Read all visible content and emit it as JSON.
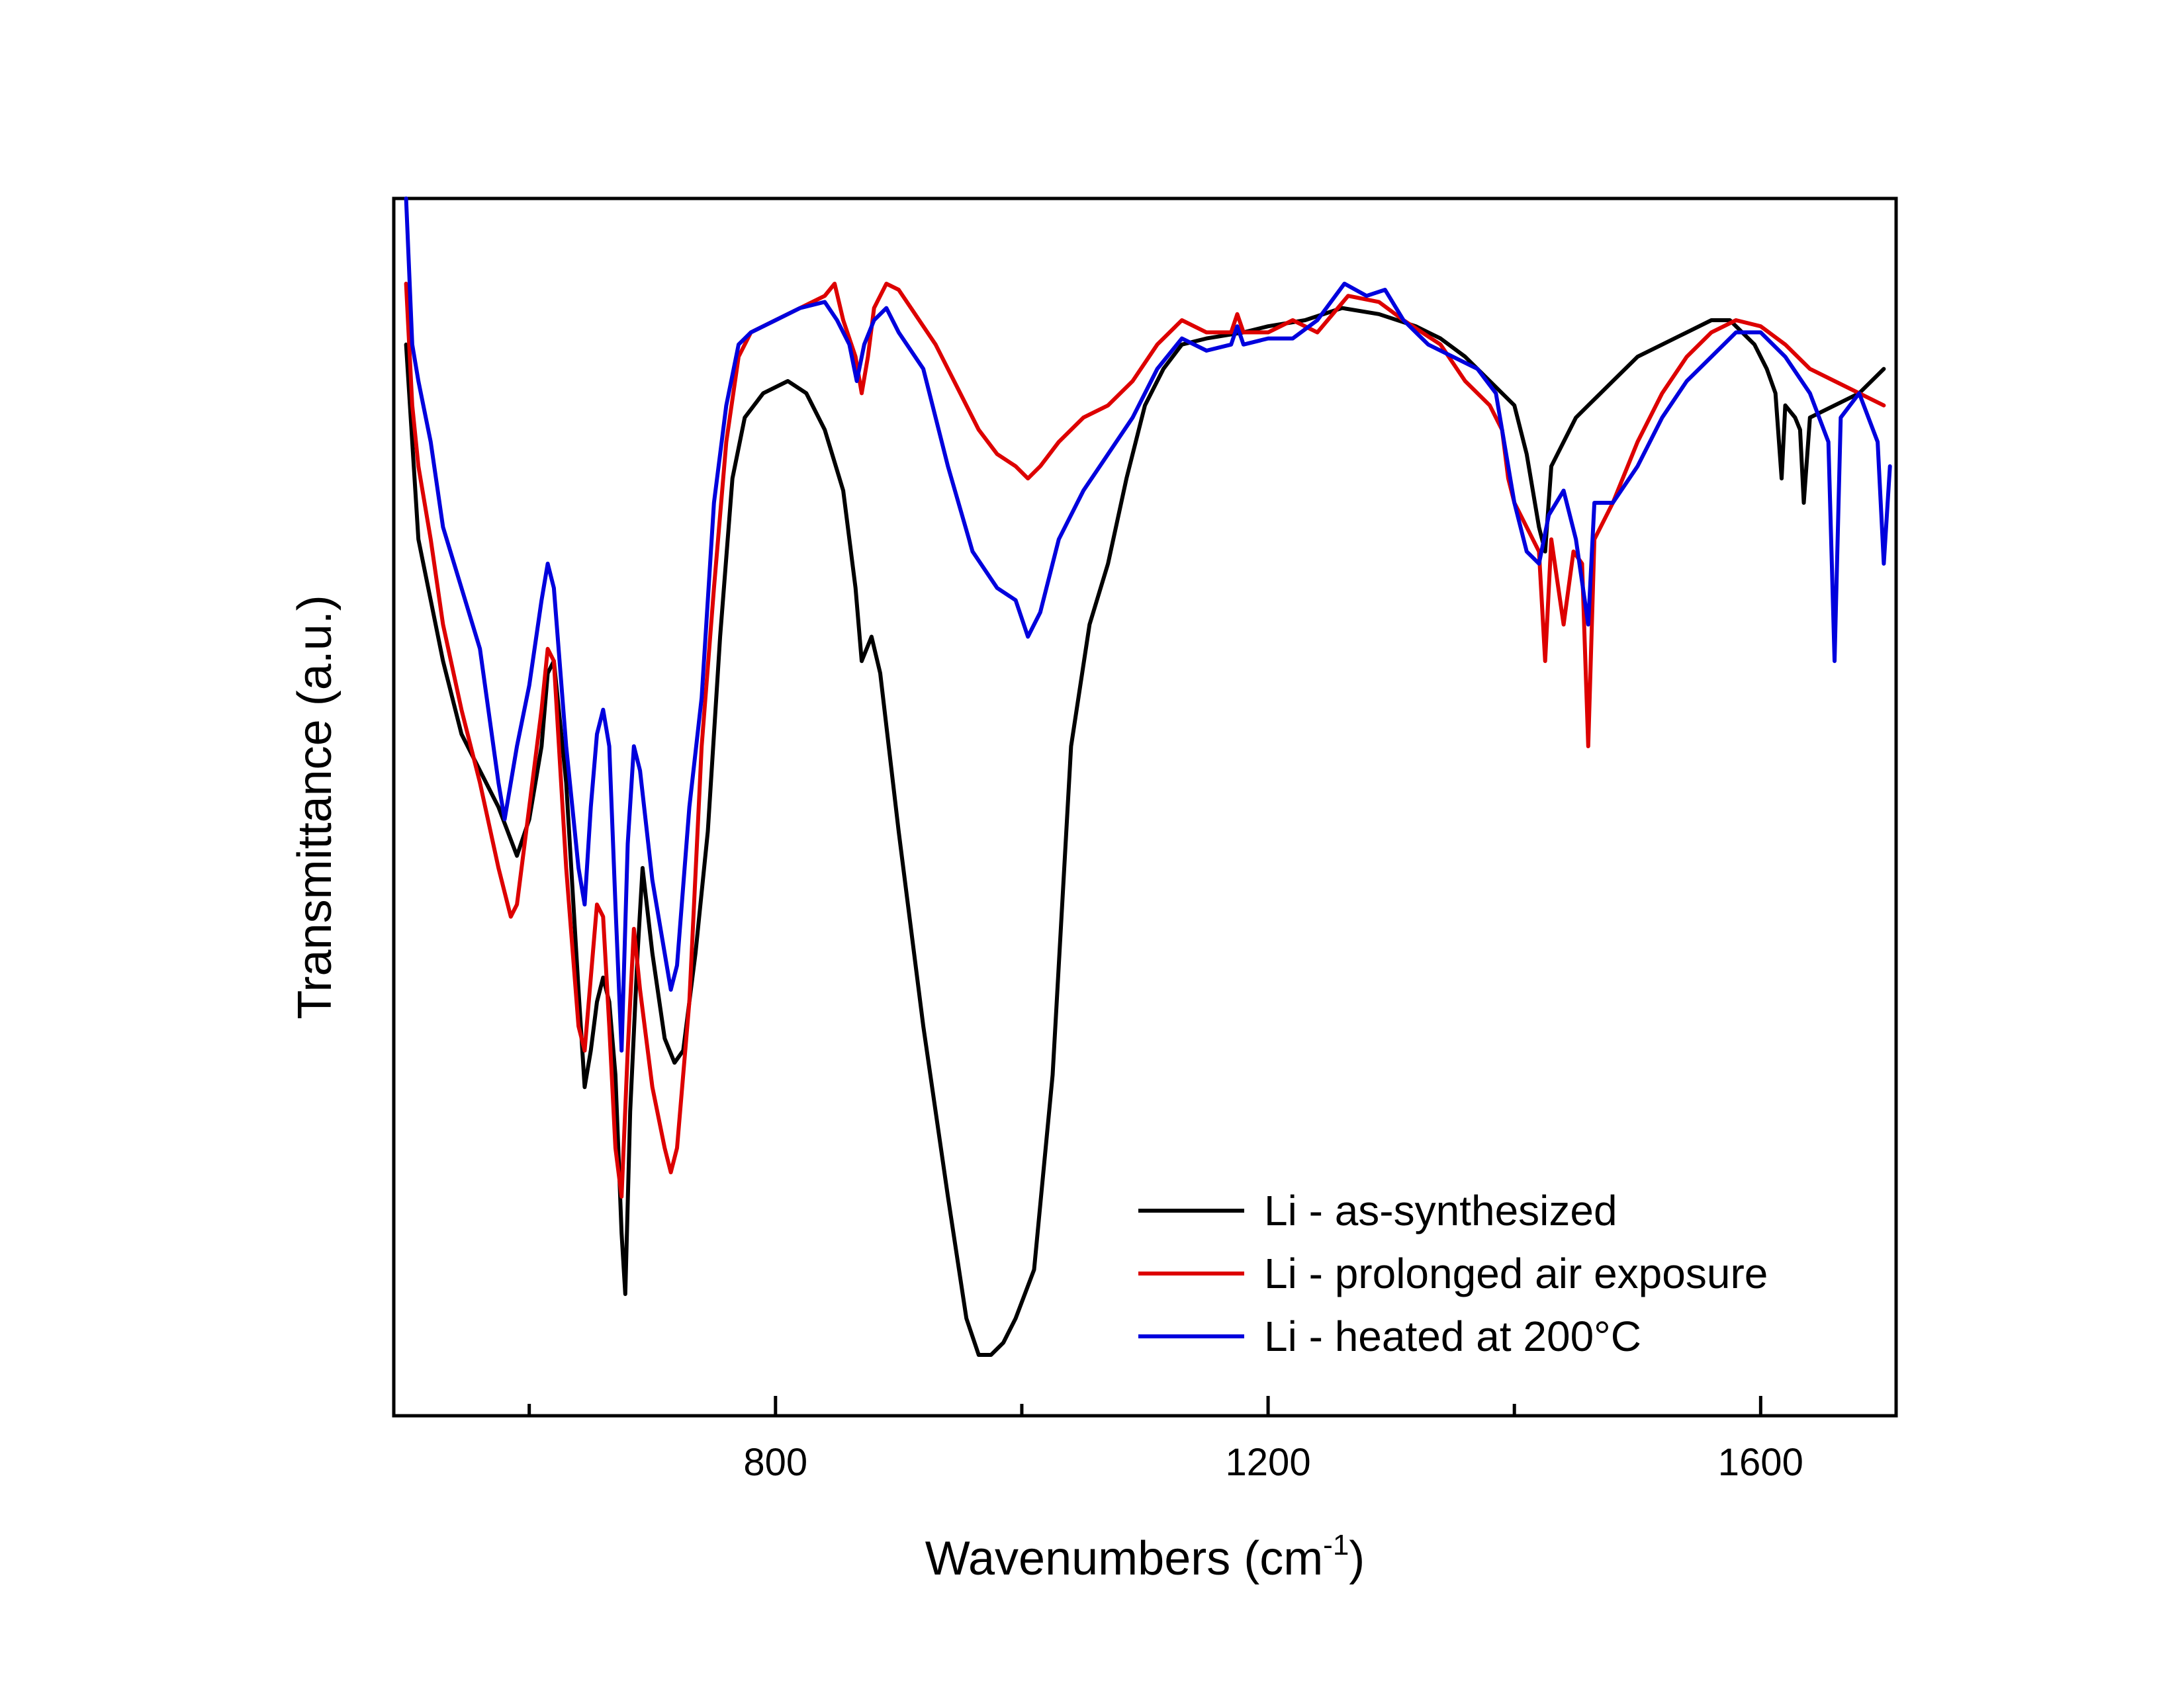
{
  "chart_data": {
    "type": "line",
    "title": "",
    "xlabel": "Wavenumbers (cm",
    "xlabel_superscript": "-1",
    "xlabel_suffix": ")",
    "ylabel": "Transmittance (a.u.)",
    "xlim": [
      490,
      1710
    ],
    "ylim": [
      0,
      100
    ],
    "x_ticks_major": [
      800,
      1200,
      1600
    ],
    "x_tick_labels": [
      "800",
      "1200",
      "1600"
    ],
    "x_ticks_minor": [
      600,
      1000,
      1400
    ],
    "y_ticks": [],
    "grid": false,
    "legend": {
      "position": "bottom-right"
    },
    "series": [
      {
        "name": "Li - as-synthesized",
        "color": "#000000",
        "points": [
          [
            500,
            88
          ],
          [
            505,
            80
          ],
          [
            510,
            72
          ],
          [
            520,
            67
          ],
          [
            530,
            62
          ],
          [
            545,
            56
          ],
          [
            560,
            53
          ],
          [
            575,
            50
          ],
          [
            590,
            46
          ],
          [
            600,
            49
          ],
          [
            610,
            55
          ],
          [
            615,
            61
          ],
          [
            620,
            62
          ],
          [
            630,
            52
          ],
          [
            640,
            35
          ],
          [
            645,
            27
          ],
          [
            650,
            30
          ],
          [
            655,
            34
          ],
          [
            660,
            36
          ],
          [
            665,
            34
          ],
          [
            670,
            28
          ],
          [
            675,
            15
          ],
          [
            678,
            10
          ],
          [
            682,
            25
          ],
          [
            688,
            38
          ],
          [
            692,
            45
          ],
          [
            700,
            38
          ],
          [
            710,
            31
          ],
          [
            718,
            29
          ],
          [
            725,
            30
          ],
          [
            735,
            38
          ],
          [
            745,
            48
          ],
          [
            755,
            64
          ],
          [
            765,
            77
          ],
          [
            775,
            82
          ],
          [
            790,
            84
          ],
          [
            810,
            85
          ],
          [
            825,
            84
          ],
          [
            840,
            81
          ],
          [
            855,
            76
          ],
          [
            865,
            68
          ],
          [
            870,
            62
          ],
          [
            878,
            64
          ],
          [
            885,
            61
          ],
          [
            900,
            48
          ],
          [
            920,
            32
          ],
          [
            940,
            18
          ],
          [
            955,
            8
          ],
          [
            965,
            5
          ],
          [
            975,
            5
          ],
          [
            985,
            6
          ],
          [
            995,
            8
          ],
          [
            1010,
            12
          ],
          [
            1025,
            28
          ],
          [
            1040,
            55
          ],
          [
            1055,
            65
          ],
          [
            1070,
            70
          ],
          [
            1085,
            77
          ],
          [
            1100,
            83
          ],
          [
            1115,
            86
          ],
          [
            1130,
            88
          ],
          [
            1150,
            88.5
          ],
          [
            1180,
            89
          ],
          [
            1200,
            89.5
          ],
          [
            1230,
            90
          ],
          [
            1260,
            91
          ],
          [
            1290,
            90.5
          ],
          [
            1320,
            89.5
          ],
          [
            1340,
            88.5
          ],
          [
            1360,
            87
          ],
          [
            1380,
            85
          ],
          [
            1400,
            83
          ],
          [
            1410,
            79
          ],
          [
            1420,
            73
          ],
          [
            1425,
            71
          ],
          [
            1430,
            78
          ],
          [
            1440,
            80
          ],
          [
            1450,
            82
          ],
          [
            1460,
            83
          ],
          [
            1480,
            85
          ],
          [
            1500,
            87
          ],
          [
            1520,
            88
          ],
          [
            1540,
            89
          ],
          [
            1560,
            90
          ],
          [
            1575,
            90
          ],
          [
            1585,
            89
          ],
          [
            1595,
            88
          ],
          [
            1605,
            86
          ],
          [
            1612,
            84
          ],
          [
            1617,
            77
          ],
          [
            1620,
            83
          ],
          [
            1628,
            82
          ],
          [
            1632,
            81
          ],
          [
            1635,
            75
          ],
          [
            1640,
            82
          ],
          [
            1660,
            83
          ],
          [
            1680,
            84
          ],
          [
            1700,
            86
          ]
        ]
      },
      {
        "name": "Li - prolonged air exposure",
        "color": "#dd0000",
        "points": [
          [
            500,
            93
          ],
          [
            505,
            83
          ],
          [
            510,
            78
          ],
          [
            520,
            72
          ],
          [
            530,
            65
          ],
          [
            545,
            58
          ],
          [
            560,
            52
          ],
          [
            575,
            45
          ],
          [
            585,
            41
          ],
          [
            590,
            42
          ],
          [
            600,
            50
          ],
          [
            610,
            58
          ],
          [
            615,
            63
          ],
          [
            620,
            62
          ],
          [
            630,
            45
          ],
          [
            640,
            32
          ],
          [
            645,
            30
          ],
          [
            650,
            36
          ],
          [
            655,
            42
          ],
          [
            660,
            41
          ],
          [
            665,
            32
          ],
          [
            670,
            22
          ],
          [
            675,
            18
          ],
          [
            680,
            30
          ],
          [
            685,
            40
          ],
          [
            690,
            35
          ],
          [
            700,
            27
          ],
          [
            710,
            22
          ],
          [
            715,
            20
          ],
          [
            720,
            22
          ],
          [
            730,
            34
          ],
          [
            740,
            55
          ],
          [
            750,
            68
          ],
          [
            760,
            80
          ],
          [
            770,
            87
          ],
          [
            780,
            89
          ],
          [
            800,
            90
          ],
          [
            820,
            91
          ],
          [
            840,
            92
          ],
          [
            848,
            93
          ],
          [
            855,
            90
          ],
          [
            865,
            87
          ],
          [
            870,
            84
          ],
          [
            875,
            87
          ],
          [
            880,
            91
          ],
          [
            890,
            93
          ],
          [
            900,
            92.5
          ],
          [
            910,
            91
          ],
          [
            930,
            88
          ],
          [
            950,
            84
          ],
          [
            965,
            81
          ],
          [
            980,
            79
          ],
          [
            995,
            78
          ],
          [
            1005,
            77
          ],
          [
            1015,
            78
          ],
          [
            1030,
            80
          ],
          [
            1050,
            82
          ],
          [
            1070,
            83
          ],
          [
            1090,
            85
          ],
          [
            1110,
            88
          ],
          [
            1130,
            90
          ],
          [
            1150,
            89
          ],
          [
            1170,
            89
          ],
          [
            1175,
            90.5
          ],
          [
            1180,
            89
          ],
          [
            1200,
            89
          ],
          [
            1220,
            90
          ],
          [
            1240,
            89
          ],
          [
            1265,
            92
          ],
          [
            1290,
            91.5
          ],
          [
            1310,
            90
          ],
          [
            1340,
            88
          ],
          [
            1360,
            85
          ],
          [
            1380,
            83
          ],
          [
            1390,
            81
          ],
          [
            1395,
            77
          ],
          [
            1400,
            75
          ],
          [
            1410,
            73
          ],
          [
            1420,
            71
          ],
          [
            1425,
            62
          ],
          [
            1430,
            72
          ],
          [
            1440,
            65
          ],
          [
            1448,
            71
          ],
          [
            1455,
            70
          ],
          [
            1460,
            55
          ],
          [
            1465,
            72
          ],
          [
            1480,
            75
          ],
          [
            1500,
            80
          ],
          [
            1520,
            84
          ],
          [
            1540,
            87
          ],
          [
            1560,
            89
          ],
          [
            1580,
            90
          ],
          [
            1600,
            89.5
          ],
          [
            1620,
            88
          ],
          [
            1640,
            86
          ],
          [
            1660,
            85
          ],
          [
            1680,
            84
          ],
          [
            1700,
            83
          ]
        ]
      },
      {
        "name": "Li - heated at 200°C",
        "color": "#0000dd",
        "points": [
          [
            500,
            100
          ],
          [
            505,
            88
          ],
          [
            510,
            85
          ],
          [
            520,
            80
          ],
          [
            530,
            73
          ],
          [
            545,
            68
          ],
          [
            560,
            63
          ],
          [
            575,
            52
          ],
          [
            580,
            49
          ],
          [
            590,
            55
          ],
          [
            600,
            60
          ],
          [
            610,
            67
          ],
          [
            615,
            70
          ],
          [
            620,
            68
          ],
          [
            630,
            55
          ],
          [
            640,
            45
          ],
          [
            645,
            42
          ],
          [
            650,
            50
          ],
          [
            655,
            56
          ],
          [
            660,
            58
          ],
          [
            665,
            55
          ],
          [
            670,
            42
          ],
          [
            675,
            30
          ],
          [
            680,
            47
          ],
          [
            685,
            55
          ],
          [
            690,
            53
          ],
          [
            700,
            44
          ],
          [
            710,
            38
          ],
          [
            715,
            35
          ],
          [
            720,
            37
          ],
          [
            730,
            50
          ],
          [
            740,
            59
          ],
          [
            750,
            75
          ],
          [
            760,
            83
          ],
          [
            770,
            88
          ],
          [
            780,
            89
          ],
          [
            800,
            90
          ],
          [
            820,
            91
          ],
          [
            840,
            91.5
          ],
          [
            850,
            90
          ],
          [
            860,
            88
          ],
          [
            866,
            85
          ],
          [
            872,
            88
          ],
          [
            880,
            90
          ],
          [
            890,
            91
          ],
          [
            900,
            89
          ],
          [
            920,
            86
          ],
          [
            940,
            78
          ],
          [
            960,
            71
          ],
          [
            980,
            68
          ],
          [
            995,
            67
          ],
          [
            1005,
            64
          ],
          [
            1015,
            66
          ],
          [
            1030,
            72
          ],
          [
            1050,
            76
          ],
          [
            1070,
            79
          ],
          [
            1090,
            82
          ],
          [
            1110,
            86
          ],
          [
            1130,
            88.5
          ],
          [
            1150,
            87.5
          ],
          [
            1170,
            88
          ],
          [
            1175,
            89.5
          ],
          [
            1180,
            88
          ],
          [
            1200,
            88.5
          ],
          [
            1220,
            88.5
          ],
          [
            1240,
            90
          ],
          [
            1262,
            93
          ],
          [
            1280,
            92
          ],
          [
            1295,
            92.5
          ],
          [
            1310,
            90
          ],
          [
            1330,
            88
          ],
          [
            1350,
            87
          ],
          [
            1370,
            86
          ],
          [
            1385,
            84
          ],
          [
            1395,
            78
          ],
          [
            1400,
            75
          ],
          [
            1410,
            71
          ],
          [
            1420,
            70
          ],
          [
            1428,
            74
          ],
          [
            1440,
            76
          ],
          [
            1450,
            72
          ],
          [
            1460,
            65
          ],
          [
            1465,
            75
          ],
          [
            1480,
            75
          ],
          [
            1500,
            78
          ],
          [
            1520,
            82
          ],
          [
            1540,
            85
          ],
          [
            1560,
            87
          ],
          [
            1580,
            89
          ],
          [
            1600,
            89
          ],
          [
            1620,
            87
          ],
          [
            1640,
            84
          ],
          [
            1655,
            80
          ],
          [
            1660,
            62
          ],
          [
            1665,
            82
          ],
          [
            1680,
            84
          ],
          [
            1695,
            80
          ],
          [
            1700,
            70
          ],
          [
            1705,
            78
          ]
        ]
      }
    ]
  }
}
